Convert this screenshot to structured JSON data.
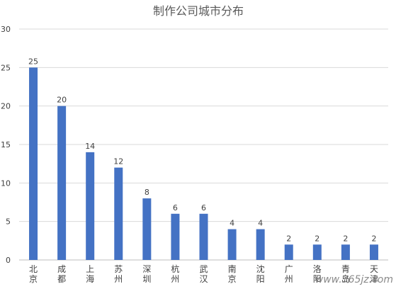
{
  "chart_data": {
    "type": "bar",
    "title": "制作公司城市分布",
    "categories": [
      "北京",
      "成都",
      "上海",
      "苏州",
      "深圳",
      "杭州",
      "武汉",
      "南京",
      "沈阳",
      "广州",
      "洛阳",
      "青岛",
      "天津"
    ],
    "values": [
      25,
      20,
      14,
      12,
      8,
      6,
      6,
      4,
      4,
      2,
      2,
      2,
      2
    ],
    "xlabel": "",
    "ylabel": "",
    "ylim": [
      0,
      30
    ],
    "yticks": [
      0,
      5,
      10,
      15,
      20,
      25,
      30
    ],
    "grid": true,
    "bar_color": "#4472C4",
    "data_labels": true
  },
  "watermark": {
    "text": "www.365jz.com"
  }
}
